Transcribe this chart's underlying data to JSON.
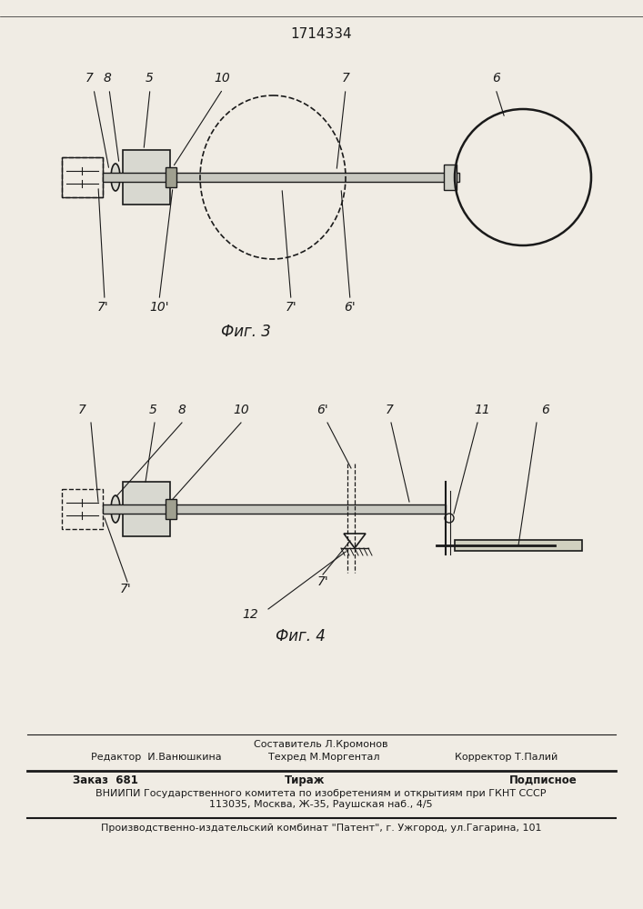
{
  "title": "1714334",
  "fig3_caption": "Фиг. 3",
  "fig4_caption": "Фиг. 4",
  "bg_color": "#f0ece4",
  "line_color": "#1a1a1a",
  "footer_lines": [
    "Составитель Л.Кромонов",
    "Редактор  И.Ванюшкина      Техред М.Моргентал          Корректор Т.Палий",
    "Заказ  681                          Тираж                              Подписное",
    "ВНИИПИ Государственного комитета по изобретениям и открытиям при ГКНТ СССР",
    "113035, Москва, Ж-35, Раушская наб., 4/5",
    "Производственно-издательский комбинат \"Патент\", г. Ужгород, ул.Гагарина, 101"
  ]
}
